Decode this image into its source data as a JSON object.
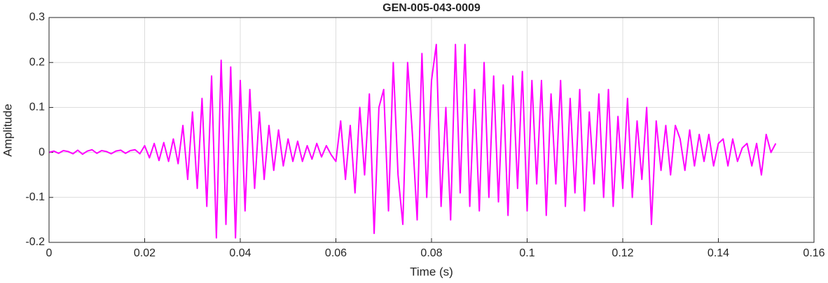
{
  "chart_data": {
    "type": "line",
    "title": "GEN-005-043-0009",
    "xlabel": "Time (s)",
    "ylabel": "Amplitude",
    "xlim": [
      0,
      0.16
    ],
    "ylim": [
      -0.2,
      0.3
    ],
    "xticks": [
      0,
      0.02,
      0.04,
      0.06,
      0.08,
      0.1,
      0.12,
      0.14,
      0.16
    ],
    "yticks": [
      -0.2,
      -0.1,
      0,
      0.1,
      0.2,
      0.3
    ],
    "grid": true,
    "x": [
      0,
      0.001,
      0.002,
      0.003,
      0.004,
      0.005,
      0.006,
      0.007,
      0.008,
      0.009,
      0.01,
      0.011,
      0.012,
      0.013,
      0.014,
      0.015,
      0.016,
      0.017,
      0.018,
      0.019,
      0.02,
      0.021,
      0.022,
      0.023,
      0.024,
      0.025,
      0.026,
      0.027,
      0.028,
      0.029,
      0.03,
      0.031,
      0.032,
      0.033,
      0.034,
      0.035,
      0.036,
      0.037,
      0.038,
      0.039,
      0.04,
      0.041,
      0.042,
      0.043,
      0.044,
      0.045,
      0.046,
      0.047,
      0.048,
      0.049,
      0.05,
      0.051,
      0.052,
      0.053,
      0.054,
      0.055,
      0.056,
      0.057,
      0.058,
      0.059,
      0.06,
      0.061,
      0.062,
      0.063,
      0.064,
      0.065,
      0.066,
      0.067,
      0.068,
      0.069,
      0.07,
      0.071,
      0.072,
      0.073,
      0.074,
      0.075,
      0.076,
      0.077,
      0.078,
      0.079,
      0.08,
      0.081,
      0.082,
      0.083,
      0.084,
      0.085,
      0.086,
      0.087,
      0.088,
      0.089,
      0.09,
      0.091,
      0.092,
      0.093,
      0.094,
      0.095,
      0.096,
      0.097,
      0.098,
      0.099,
      0.1,
      0.101,
      0.102,
      0.103,
      0.104,
      0.105,
      0.106,
      0.107,
      0.108,
      0.109,
      0.11,
      0.111,
      0.112,
      0.113,
      0.114,
      0.115,
      0.116,
      0.117,
      0.118,
      0.119,
      0.12,
      0.121,
      0.122,
      0.123,
      0.124,
      0.125,
      0.126,
      0.127,
      0.128,
      0.129,
      0.13,
      0.131,
      0.132,
      0.133,
      0.134,
      0.135,
      0.136,
      0.137,
      0.138,
      0.139,
      0.14,
      0.141,
      0.142,
      0.143,
      0.144,
      0.145,
      0.146,
      0.147,
      0.148,
      0.149,
      0.15,
      0.151,
      0.152
    ],
    "series": [
      {
        "color": "#ff00ff",
        "values": [
          0,
          0.003,
          -0.002,
          0.004,
          0.002,
          -0.003,
          0.005,
          -0.004,
          0.003,
          0.006,
          -0.002,
          0.004,
          0.002,
          -0.003,
          0.003,
          0.005,
          -0.002,
          0.004,
          0.006,
          -0.003,
          0.015,
          -0.012,
          0.02,
          -0.018,
          0.022,
          -0.02,
          0.03,
          -0.025,
          0.06,
          -0.06,
          0.09,
          -0.08,
          0.12,
          -0.12,
          0.17,
          -0.19,
          0.205,
          -0.16,
          0.19,
          -0.19,
          0.16,
          -0.13,
          0.14,
          -0.08,
          0.09,
          -0.06,
          0.06,
          -0.04,
          0.05,
          -0.03,
          0.03,
          -0.02,
          0.025,
          -0.02,
          0.015,
          -0.015,
          0.02,
          -0.01,
          0.015,
          -0.005,
          -0.02,
          0.07,
          -0.06,
          0.06,
          -0.09,
          0.1,
          -0.05,
          0.13,
          -0.18,
          0.1,
          0.14,
          -0.13,
          0.2,
          -0.05,
          -0.16,
          0.2,
          0.04,
          -0.15,
          0.22,
          -0.1,
          0.16,
          0.24,
          -0.12,
          0.1,
          -0.15,
          0.24,
          -0.09,
          0.24,
          -0.12,
          0.14,
          -0.13,
          0.2,
          -0.1,
          0.17,
          -0.11,
          0.15,
          -0.14,
          0.17,
          -0.08,
          0.18,
          -0.13,
          0.16,
          -0.07,
          0.16,
          -0.14,
          0.13,
          -0.07,
          0.16,
          -0.12,
          0.12,
          -0.09,
          0.14,
          -0.13,
          0.09,
          -0.07,
          0.13,
          -0.1,
          0.14,
          -0.12,
          0.08,
          -0.08,
          0.12,
          -0.1,
          0.07,
          -0.06,
          0.1,
          -0.16,
          0.07,
          -0.04,
          0.06,
          -0.05,
          0.06,
          0.03,
          -0.04,
          0.05,
          -0.03,
          0.04,
          -0.02,
          0.04,
          -0.03,
          0.02,
          0.03,
          -0.03,
          0.03,
          -0.02,
          0.01,
          0.02,
          -0.03,
          0.02,
          -0.05,
          0.04,
          0,
          0.02
        ]
      }
    ]
  }
}
